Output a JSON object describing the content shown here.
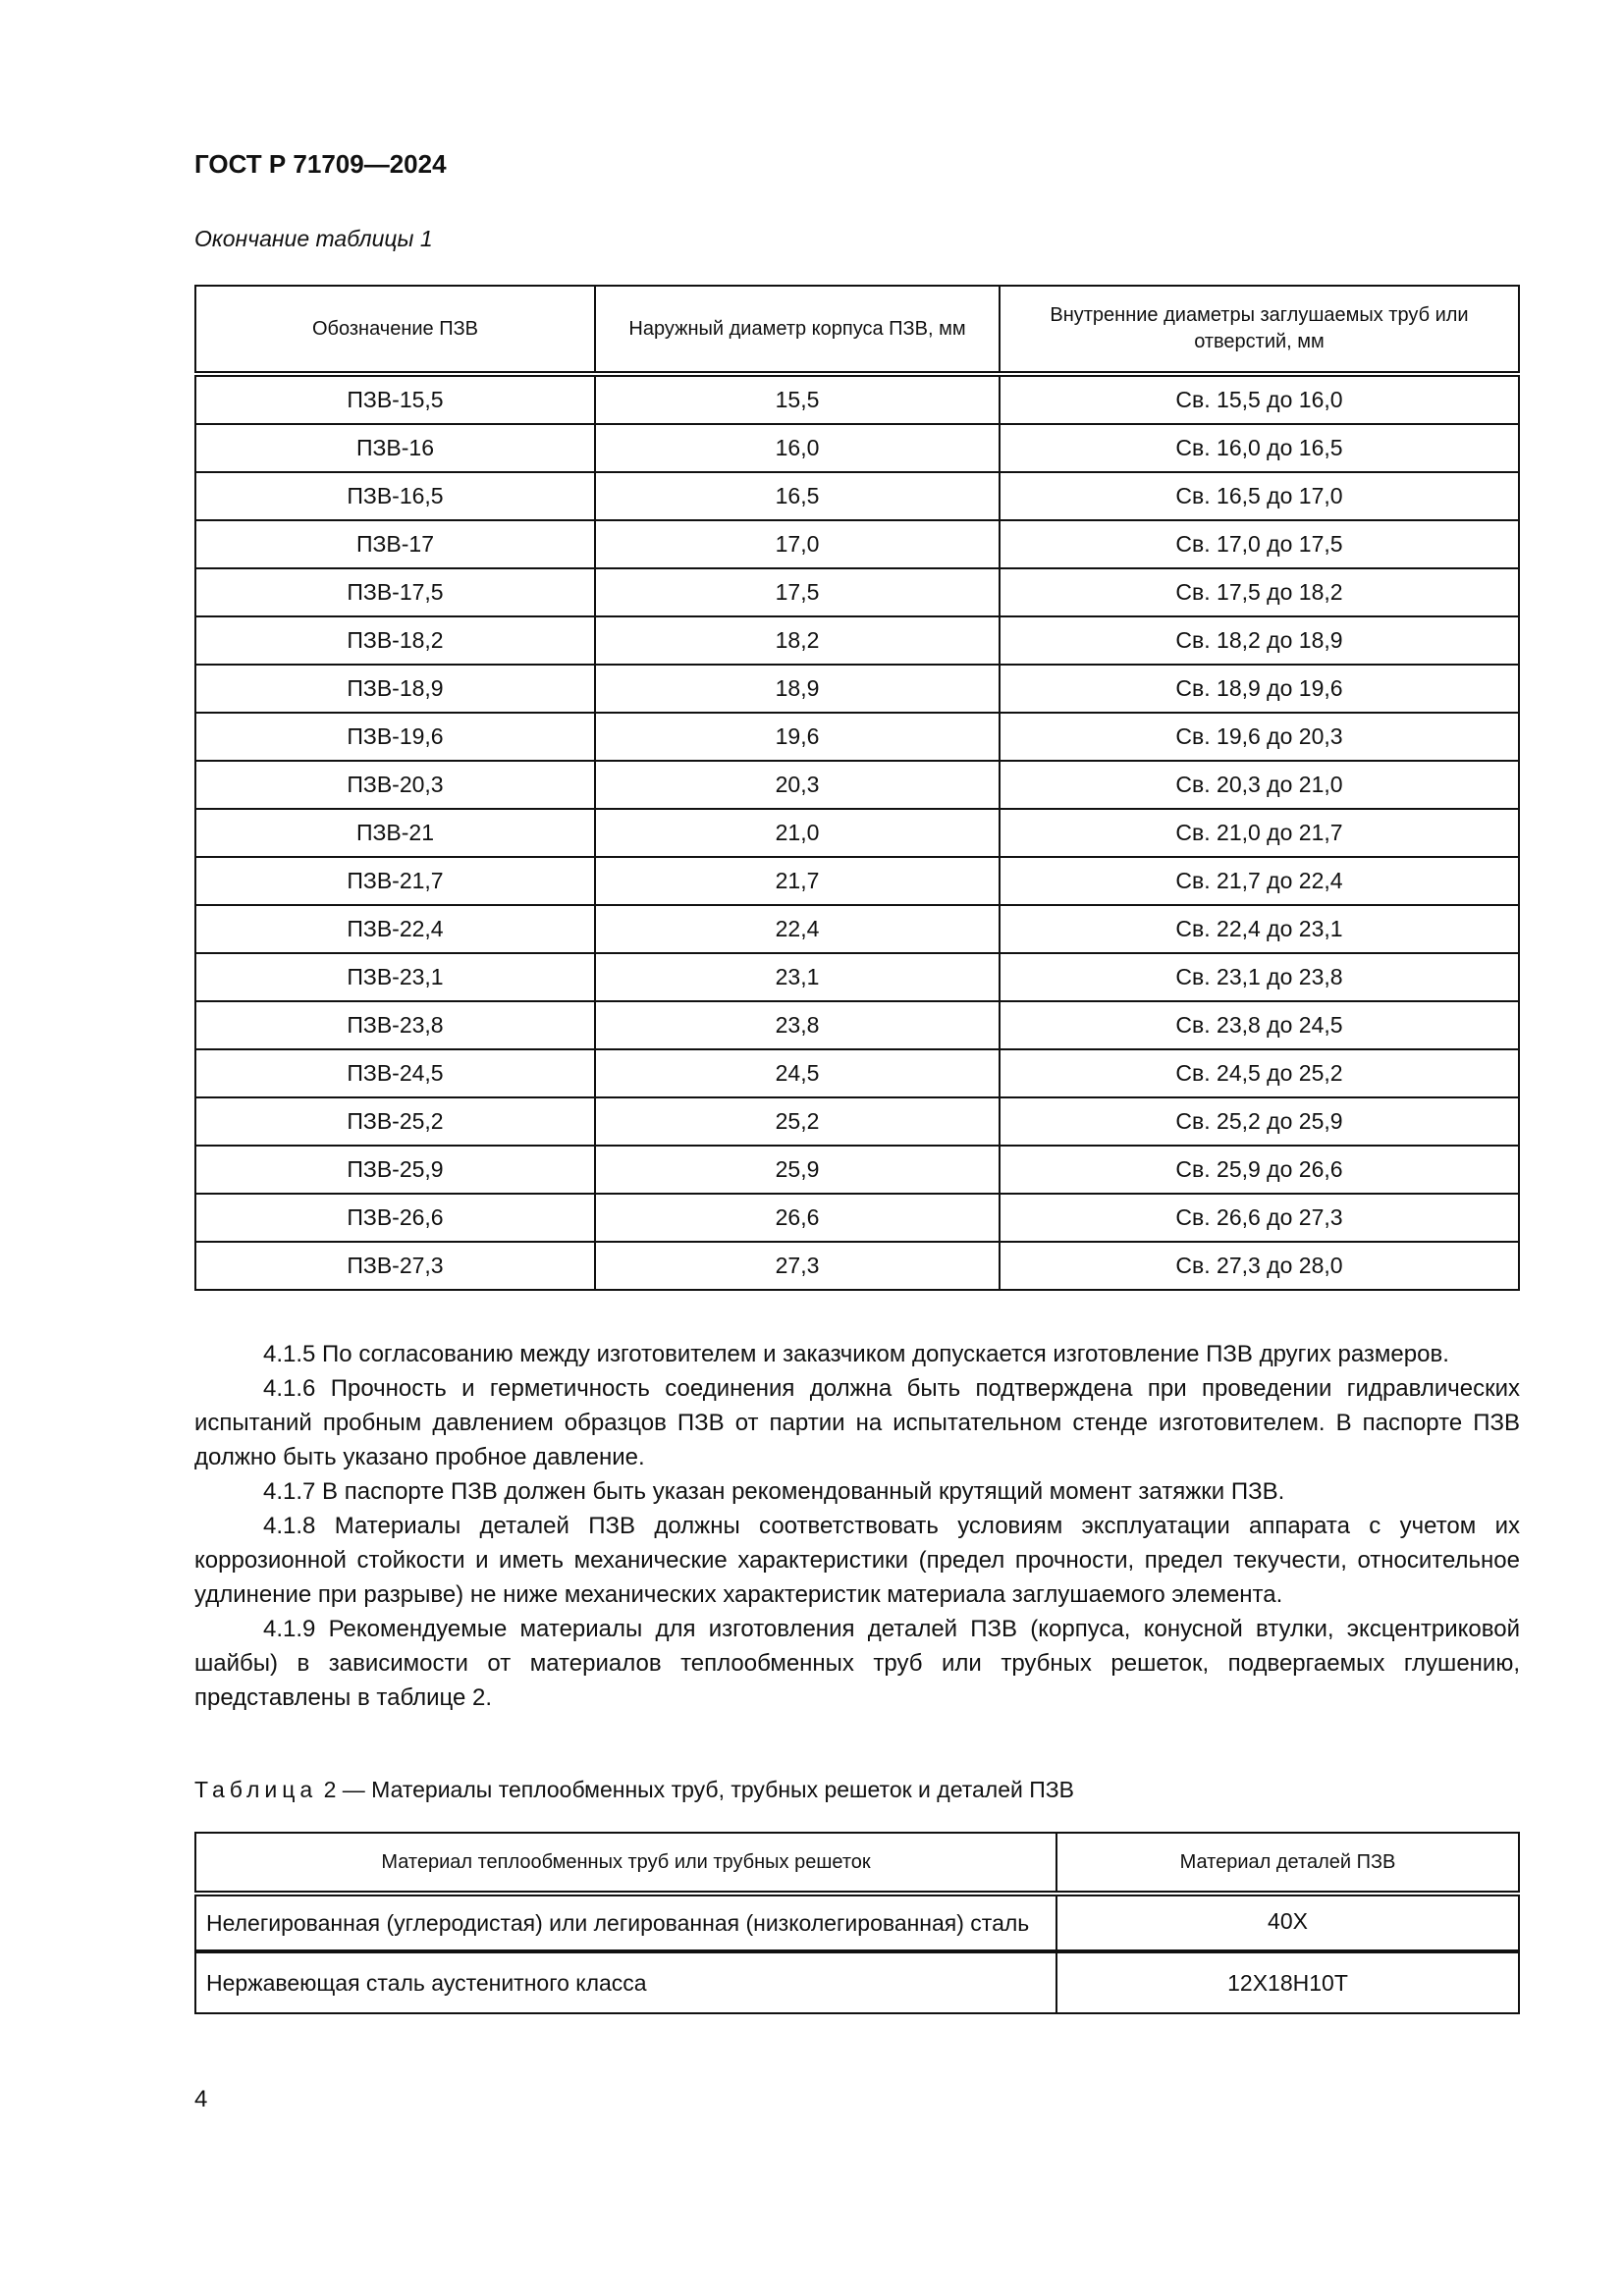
{
  "header": {
    "doc_id": "ГОСТ Р 71709—2024"
  },
  "table1": {
    "continuation": "Окончание таблицы 1",
    "columns": [
      "Обозначение ПЗВ",
      "Наружный диаметр корпуса ПЗВ, мм",
      "Внутренние диаметры заглушаемых труб или  отверстий, мм"
    ],
    "rows": [
      [
        "ПЗВ-15,5",
        "15,5",
        "Св. 15,5 до 16,0"
      ],
      [
        "ПЗВ-16",
        "16,0",
        "Св. 16,0 до 16,5"
      ],
      [
        "ПЗВ-16,5",
        "16,5",
        "Св. 16,5 до 17,0"
      ],
      [
        "ПЗВ-17",
        "17,0",
        "Св. 17,0 до 17,5"
      ],
      [
        "ПЗВ-17,5",
        "17,5",
        "Св. 17,5 до 18,2"
      ],
      [
        "ПЗВ-18,2",
        "18,2",
        "Св. 18,2 до 18,9"
      ],
      [
        "ПЗВ-18,9",
        "18,9",
        "Св. 18,9 до 19,6"
      ],
      [
        "ПЗВ-19,6",
        "19,6",
        "Св. 19,6 до 20,3"
      ],
      [
        "ПЗВ-20,3",
        "20,3",
        "Св. 20,3 до 21,0"
      ],
      [
        "ПЗВ-21",
        "21,0",
        "Св. 21,0 до 21,7"
      ],
      [
        "ПЗВ-21,7",
        "21,7",
        "Св. 21,7 до 22,4"
      ],
      [
        "ПЗВ-22,4",
        "22,4",
        "Св. 22,4 до 23,1"
      ],
      [
        "ПЗВ-23,1",
        "23,1",
        "Св. 23,1 до 23,8"
      ],
      [
        "ПЗВ-23,8",
        "23,8",
        "Св. 23,8 до 24,5"
      ],
      [
        "ПЗВ-24,5",
        "24,5",
        "Св. 24,5 до 25,2"
      ],
      [
        "ПЗВ-25,2",
        "25,2",
        "Св. 25,2 до 25,9"
      ],
      [
        "ПЗВ-25,9",
        "25,9",
        "Св. 25,9 до 26,6"
      ],
      [
        "ПЗВ-26,6",
        "26,6",
        "Св. 26,6 до 27,3"
      ],
      [
        "ПЗВ-27,3",
        "27,3",
        "Св. 27,3 до 28,0"
      ]
    ]
  },
  "paragraphs": [
    "4.1.5 По согласованию между изготовителем и заказчиком допускается изготовление ПЗВ других размеров.",
    "4.1.6 Прочность и герметичность соединения должна быть подтверждена при проведении гидравлических испытаний пробным давлением образцов ПЗВ от партии на испытательном стенде изготовителем. В паспорте ПЗВ должно быть указано пробное давление.",
    "4.1.7 В паспорте ПЗВ должен быть указан рекомендованный крутящий момент затяжки ПЗВ.",
    "4.1.8 Материалы деталей ПЗВ должны соответствовать условиям эксплуатации аппарата с учетом их коррозионной стойкости и иметь механические характеристики (предел прочности, предел текучести, относительное удлинение при разрыве) не ниже механических характеристик материала заглушаемого элемента.",
    "4.1.9 Рекомендуемые материалы для изготовления деталей ПЗВ (корпуса, конусной втулки, эксцентриковой шайбы) в зависимости от материалов теплообменных труб или трубных решеток, подвергаемых глушению, представлены в таблице 2."
  ],
  "table2": {
    "caption_label": "Таблица",
    "caption_text": " 2 — Материалы теплообменных труб, трубных решеток и деталей ПЗВ",
    "columns": [
      "Материал теплообменных труб или трубных решеток",
      "Материал деталей ПЗВ"
    ],
    "rows": [
      [
        "Нелегированная (углеродистая) или легированная (низколегированная) сталь",
        "40Х"
      ],
      [
        "Нержавеющая сталь аустенитного класса",
        "12Х18Н10Т"
      ]
    ]
  },
  "footer": {
    "page_number": "4"
  }
}
